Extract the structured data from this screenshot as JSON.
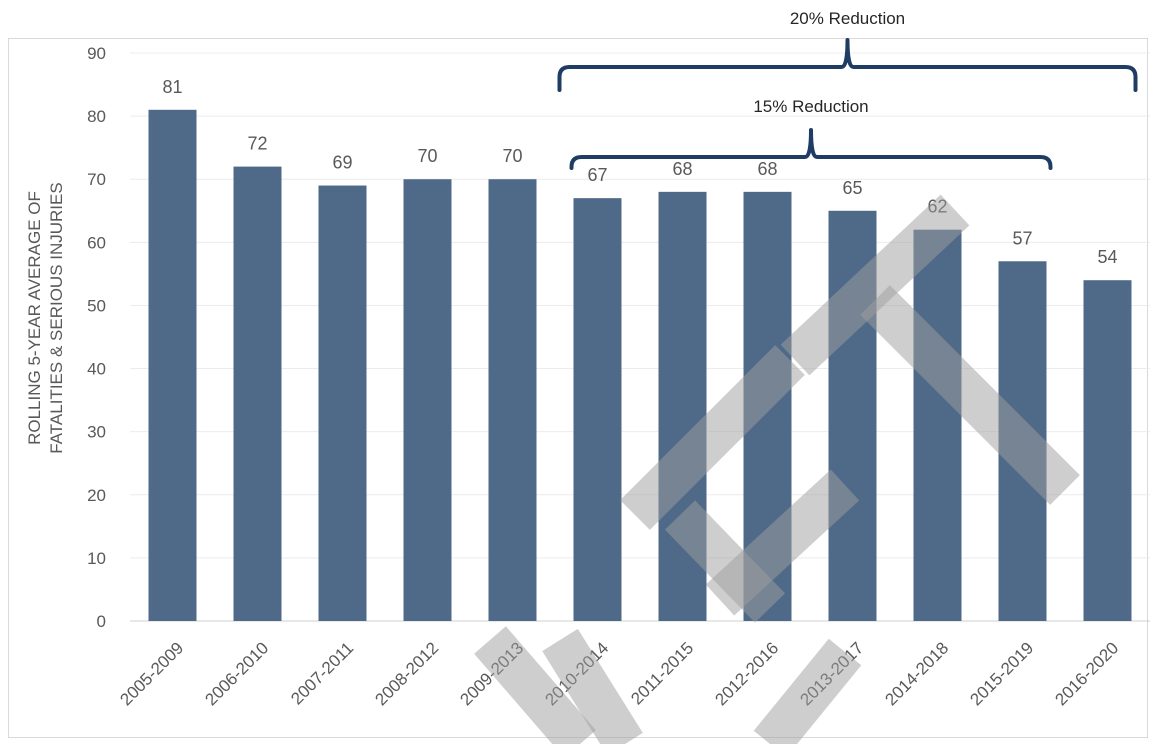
{
  "chart_data": {
    "type": "bar",
    "title": "",
    "ylabel_lines": [
      "ROLLING 5-YEAR AVERAGE OF",
      "FATALITIES & SERIOUS INJURIES"
    ],
    "xlabel": "",
    "ylim": [
      0,
      90
    ],
    "yticks": [
      0,
      10,
      20,
      30,
      40,
      50,
      60,
      70,
      80,
      90
    ],
    "categories": [
      "2005-2009",
      "2006-2010",
      "2007-2011",
      "2008-2012",
      "2009-2013",
      "2010-2014",
      "2011-2015",
      "2012-2016",
      "2013-2017",
      "2014-2018",
      "2015-2019",
      "2016-2020"
    ],
    "values": [
      81,
      72,
      69,
      70,
      70,
      67,
      68,
      68,
      65,
      62,
      57,
      54
    ],
    "bar_color": "#4f6a88",
    "grid": true,
    "legend": "none",
    "annotations": [
      {
        "label": "20% Reduction",
        "from_category": 5,
        "to_category": 11
      },
      {
        "label": "15% Reduction",
        "from_category": 5,
        "to_category": 10
      }
    ],
    "watermark": {
      "description": "large grey diagonal watermark drawn over the plot",
      "color": "#9e9e9e"
    }
  }
}
